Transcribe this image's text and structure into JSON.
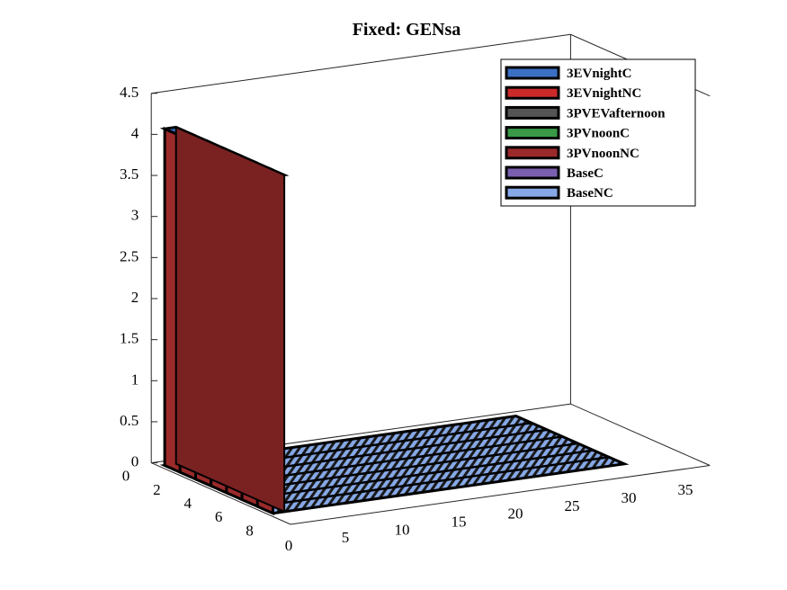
{
  "chart_data": {
    "type": "bar3d",
    "title": "Fixed: GENsa",
    "xlabel": "",
    "ylabel": "",
    "zlabel": "",
    "x_ticks": [
      "0",
      "5",
      "10",
      "15",
      "20",
      "25",
      "30",
      "35"
    ],
    "y_ticks": [
      "0",
      "2",
      "4",
      "6",
      "8"
    ],
    "z_ticks": [
      "0",
      "0.5",
      "1",
      "1.5",
      "2",
      "2.5",
      "3",
      "3.5",
      "4",
      "4.5"
    ],
    "xlim": [
      0,
      35
    ],
    "ylim": [
      0,
      8
    ],
    "zlim": [
      0,
      4.5
    ],
    "x": [
      1,
      2,
      3,
      4,
      5,
      6,
      7,
      8,
      9,
      10,
      11,
      12,
      13,
      14,
      15,
      16,
      17,
      18,
      19,
      20,
      21,
      22,
      23,
      24,
      25,
      26,
      27,
      28,
      29,
      30,
      31
    ],
    "rows": [
      1,
      2,
      3,
      4,
      5,
      6,
      7
    ],
    "series": [
      {
        "name": "3EVnightC",
        "color": "#3b6fc4",
        "values": [
          4.1,
          0,
          0,
          0,
          0,
          0,
          0,
          0,
          0,
          0,
          0,
          0,
          0,
          0,
          0,
          0,
          0,
          0,
          0,
          0,
          0,
          0,
          0,
          0,
          0,
          0,
          0,
          0,
          0,
          0,
          0
        ]
      },
      {
        "name": "3EVnightNC",
        "color": "#cc2a2a",
        "values": [
          4.1,
          0,
          0,
          0,
          0,
          0,
          0,
          0,
          0,
          0,
          0,
          0,
          0,
          0,
          0,
          0,
          0,
          0,
          0,
          0,
          0,
          0,
          0,
          0,
          0,
          0,
          0,
          0,
          0,
          0,
          0
        ]
      },
      {
        "name": "3PVEVafternoon",
        "color": "#555555",
        "values": [
          4.1,
          0,
          0,
          0,
          0,
          0,
          0,
          0,
          0,
          0,
          0,
          0,
          0,
          0,
          0,
          0,
          0,
          0,
          0,
          0,
          0,
          0,
          0,
          0,
          0,
          0,
          0,
          0,
          0,
          0,
          0
        ]
      },
      {
        "name": "3PVnoonC",
        "color": "#3a9a47",
        "values": [
          4.1,
          0,
          0,
          0,
          0,
          0,
          0,
          0,
          0,
          0,
          0,
          0,
          0,
          0,
          0,
          0,
          0,
          0,
          0,
          0,
          0,
          0,
          0,
          0,
          0,
          0,
          0,
          0,
          0,
          0,
          0
        ]
      },
      {
        "name": "3PVnoonNC",
        "color": "#9b2a2a",
        "values": [
          4.1,
          0,
          0,
          0,
          0,
          0,
          0,
          0,
          0,
          0,
          0,
          0,
          0,
          0,
          0,
          0,
          0,
          0,
          0,
          0,
          0,
          0,
          0,
          0,
          0,
          0,
          0,
          0,
          0,
          0,
          0
        ]
      },
      {
        "name": "BaseC",
        "color": "#7a5fb0",
        "values": [
          4.1,
          0,
          0,
          0,
          0,
          0,
          0,
          0,
          0,
          0,
          0,
          0,
          0,
          0,
          0,
          0,
          0,
          0,
          0,
          0,
          0,
          0,
          0,
          0,
          0,
          0,
          0,
          0,
          0,
          0,
          0
        ]
      },
      {
        "name": "BaseNC",
        "color": "#86a8e6",
        "values": [
          4.1,
          0,
          0,
          0,
          0,
          0,
          0,
          0,
          0,
          0,
          0,
          0,
          0,
          0,
          0,
          0,
          0,
          0,
          0,
          0,
          0,
          0,
          0,
          0,
          0,
          0,
          0,
          0,
          0,
          0,
          0
        ]
      }
    ],
    "legend_position": "top-right",
    "grid": false
  }
}
